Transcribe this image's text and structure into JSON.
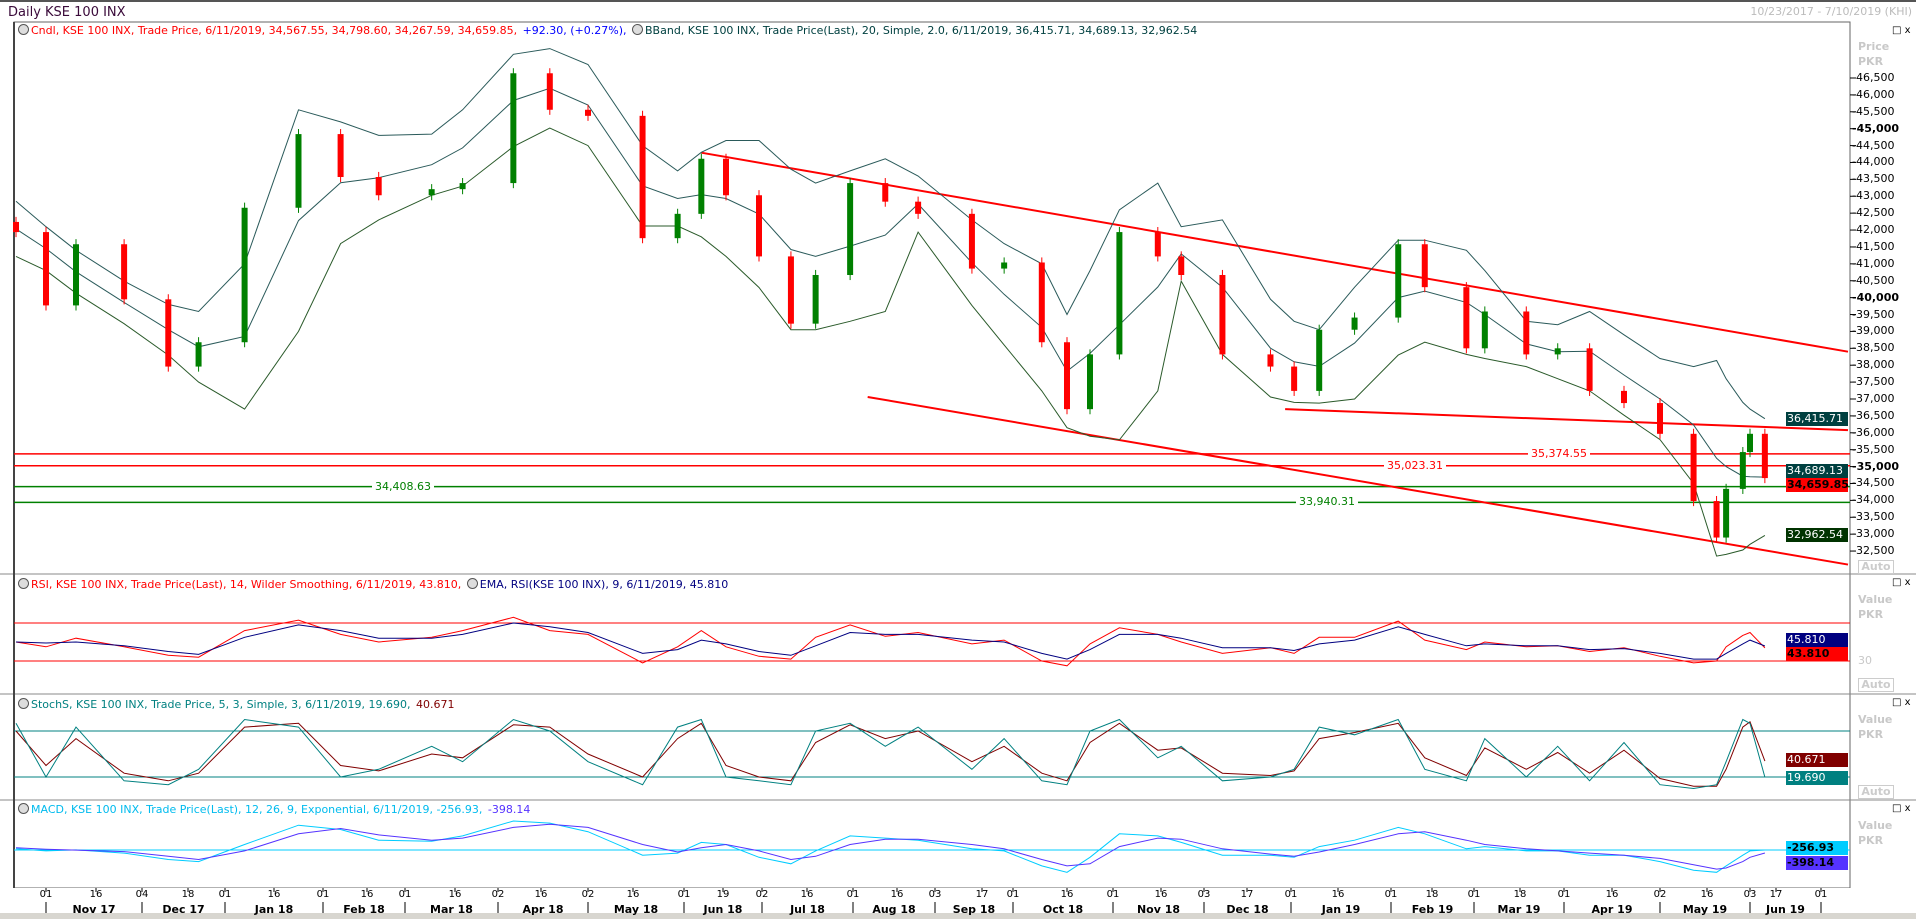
{
  "window": {
    "title": "Daily KSE 100 INX",
    "date_range": "10/23/2017 - 7/10/2019 (KHI)"
  },
  "legends": {
    "candle": "Cndl, KSE 100 INX, Trade Price, 6/11/2019, 34,567.55, 34,798.60, 34,267.59, 34,659.85,",
    "candle_change": "+92.30, (+0.27%),",
    "bband": "BBand, KSE 100 INX, Trade Price(Last), 20, Simple, 2.0, 6/11/2019, 36,415.71, 34,689.13, 32,962.54",
    "rsi": "RSI, KSE 100 INX, Trade Price(Last), 14, Wilder Smoothing, 6/11/2019, 43.810,",
    "rsi_ema": "EMA, RSI(KSE 100 INX), 9, 6/11/2019, 45.810",
    "stoch": "StochS, KSE 100 INX, Trade Price, 5, 3, Simple, 3, 6/11/2019, 19.690,",
    "stoch_d": "40.671",
    "macd": "MACD, KSE 100 INX, Trade Price(Last), 12, 26, 9, Exponential, 6/11/2019, -256.93,",
    "macd_signal": "-398.14"
  },
  "axis_panel": {
    "price_title": "Price",
    "unit": "PKR",
    "value_title": "Value",
    "auto": "Auto",
    "rsi_level_label": "30",
    "maximize": "□",
    "close": "x"
  },
  "colors": {
    "up": "#008000",
    "down": "#ff0000",
    "band": "#004040",
    "rsi": "#ff0000",
    "rsi_ema": "#000080",
    "stoch_k": "#008080",
    "stoch_d": "#800000",
    "macd": "#00ccff",
    "macd_signal": "#5533ff",
    "trend": "#ff0000",
    "support": "#008000"
  },
  "chart_data": [
    {
      "type": "candlestick",
      "name": "KSE 100 INX",
      "ylim": [
        32300,
        47000
      ],
      "yticks": [
        46500,
        46000,
        45500,
        45000,
        44500,
        44000,
        43500,
        43000,
        42500,
        42000,
        41500,
        41000,
        40500,
        40000,
        39500,
        39000,
        38500,
        38000,
        37500,
        37000,
        36500,
        36000,
        35500,
        35000,
        34500,
        34000,
        33500,
        33000,
        32500
      ],
      "ytick_labels": [
        "46,500",
        "46,000",
        "45,500",
        "45,000",
        "44,500",
        "44,000",
        "43,500",
        "43,000",
        "42,500",
        "42,000",
        "41,500",
        "41,000",
        "40,500",
        "40,000",
        "39,500",
        "39,000",
        "38,500",
        "38,000",
        "37,500",
        "37,000",
        "36,500",
        "36,000",
        "35,500",
        "35,000",
        "34,500",
        "34,000",
        "33,500",
        "33,000",
        "32,500"
      ],
      "dates": [
        "2017-10-23",
        "2017-11-01",
        "2017-11-10",
        "2017-11-27",
        "2017-12-12",
        "2017-12-22",
        "2018-01-07",
        "2018-01-24",
        "2018-02-07",
        "2018-02-20",
        "2018-03-09",
        "2018-03-19",
        "2018-04-07",
        "2018-04-19",
        "2018-05-02",
        "2018-05-19",
        "2018-05-30",
        "2018-06-09",
        "2018-06-20",
        "2018-07-01",
        "2018-07-11",
        "2018-07-19",
        "2018-07-31",
        "2018-08-12",
        "2018-08-26",
        "2018-09-14",
        "2018-09-27",
        "2018-10-09",
        "2018-10-16",
        "2018-10-24",
        "2018-11-03",
        "2018-11-15",
        "2018-11-24",
        "2018-12-09",
        "2018-12-25",
        "2019-01-02",
        "2019-01-10",
        "2019-01-21",
        "2019-02-04",
        "2019-02-15",
        "2019-02-27",
        "2019-03-05",
        "2019-03-20",
        "2019-03-30",
        "2019-04-09",
        "2019-04-20",
        "2019-05-02",
        "2019-05-12",
        "2019-05-20",
        "2019-05-24",
        "2019-05-31",
        "2019-06-03",
        "2019-06-11"
      ],
      "close": [
        41940,
        39770,
        41580,
        39950,
        37960,
        38680,
        42660,
        44840,
        43570,
        43030,
        43210,
        43390,
        46640,
        45560,
        45380,
        41760,
        42480,
        44110,
        43030,
        41220,
        39230,
        40670,
        43390,
        42840,
        42480,
        40860,
        41040,
        38680,
        36700,
        38320,
        41940,
        41220,
        40670,
        38320,
        37960,
        37240,
        39050,
        39410,
        41580,
        40310,
        38500,
        39590,
        38320,
        38500,
        37240,
        36880,
        35970,
        33980,
        32900,
        34340,
        35430,
        35970,
        34659.85
      ],
      "last_ohlc": {
        "open": 34567.55,
        "high": 34798.6,
        "low": 34267.59,
        "close": 34659.85,
        "change": 92.3,
        "change_pct": 0.27
      },
      "bband_upper": [
        42850,
        42100,
        41400,
        40490,
        39800,
        39590,
        41000,
        45560,
        45200,
        44800,
        44840,
        45560,
        47200,
        47370,
        46900,
        44500,
        43750,
        44300,
        44650,
        44650,
        43800,
        43390,
        43750,
        44110,
        43600,
        42300,
        41600,
        41000,
        39500,
        40800,
        42600,
        43390,
        42100,
        42300,
        39950,
        39300,
        39050,
        40310,
        41700,
        41700,
        41400,
        40800,
        39300,
        39200,
        39590,
        38900,
        38200,
        37960,
        38140,
        37600,
        36900,
        36700,
        36415.71
      ],
      "bband_lower": [
        41220,
        40800,
        40130,
        39230,
        38300,
        37500,
        36700,
        39000,
        41600,
        42300,
        43030,
        43300,
        44470,
        45020,
        44500,
        42120,
        42120,
        41800,
        41220,
        40300,
        39050,
        39050,
        39300,
        39590,
        41940,
        39770,
        38600,
        37240,
        36150,
        35900,
        35790,
        37240,
        40490,
        38320,
        37060,
        36900,
        36880,
        37000,
        38300,
        38680,
        38320,
        38200,
        37960,
        37600,
        37240,
        36520,
        35800,
        34500,
        32350,
        32400,
        32530,
        32700,
        32962.54
      ],
      "bband_last": {
        "upper": 36415.71,
        "middle": 34689.13,
        "lower": 32962.54
      },
      "horizontal_lines": [
        {
          "value": 35374.55,
          "label": "35,374.55",
          "color": "#ff0000"
        },
        {
          "value": 35023.31,
          "label": "35,023.31",
          "color": "#ff0000"
        },
        {
          "value": 34408.63,
          "label": "34,408.63",
          "color": "#008000"
        },
        {
          "value": 33940.31,
          "label": "33,940.31",
          "color": "#008000"
        }
      ],
      "trend_lines": [
        {
          "from": [
            "2018-06-09",
            44290
          ],
          "to": [
            "2019-07-10",
            38400
          ]
        },
        {
          "from": [
            "2018-08-06",
            37060
          ],
          "to": [
            "2019-07-10",
            32100
          ]
        },
        {
          "from": [
            "2018-12-30",
            36700
          ],
          "to": [
            "2019-07-10",
            36080
          ]
        }
      ],
      "value_tags": [
        {
          "value": 36415.71,
          "label": "36,415.71",
          "bg": "#004040",
          "fg": "#ffffff"
        },
        {
          "value": 34689.13,
          "label": "34,689.13",
          "bg": "#004040",
          "fg": "#ffffff"
        },
        {
          "value": 34659.85,
          "label": "34,659.85",
          "bg": "#ff0000",
          "fg": "#000000"
        },
        {
          "value": 32962.54,
          "label": "32,962.54",
          "bg": "#003300",
          "fg": "#ffffff"
        }
      ]
    },
    {
      "type": "line",
      "name": "RSI",
      "levels": [
        70,
        30
      ],
      "rsi": [
        50,
        45,
        54,
        45,
        36,
        34,
        62,
        73,
        58,
        50,
        55,
        62,
        76,
        62,
        58,
        28,
        45,
        62,
        45,
        35,
        32,
        55,
        68,
        56,
        60,
        48,
        52,
        30,
        25,
        48,
        65,
        58,
        50,
        38,
        44,
        38,
        55,
        55,
        72,
        52,
        42,
        50,
        45,
        46,
        40,
        44,
        35,
        28,
        30,
        45,
        57,
        60,
        43.81
      ],
      "ema": [
        50,
        49,
        50,
        46,
        40,
        37,
        55,
        68,
        62,
        54,
        54,
        58,
        70,
        66,
        60,
        38,
        42,
        52,
        48,
        40,
        36,
        46,
        60,
        58,
        58,
        52,
        50,
        38,
        32,
        42,
        58,
        58,
        54,
        44,
        44,
        41,
        48,
        52,
        66,
        58,
        46,
        48,
        46,
        46,
        42,
        43,
        38,
        32,
        32,
        38,
        48,
        52,
        45.81
      ],
      "value_tags": [
        {
          "value": 45.81,
          "label": "45.810",
          "bg": "#000080",
          "fg": "#ffffff"
        },
        {
          "value": 43.81,
          "label": "43.810",
          "bg": "#ff0000",
          "fg": "#000000"
        }
      ]
    },
    {
      "type": "line",
      "name": "StochS",
      "levels": [
        80,
        20
      ],
      "k": [
        90,
        20,
        85,
        15,
        10,
        30,
        95,
        85,
        20,
        30,
        60,
        40,
        95,
        80,
        40,
        10,
        85,
        95,
        20,
        15,
        10,
        80,
        90,
        60,
        85,
        30,
        70,
        15,
        10,
        80,
        95,
        45,
        60,
        15,
        20,
        30,
        85,
        75,
        95,
        30,
        15,
        70,
        20,
        60,
        15,
        65,
        10,
        5,
        10,
        40,
        95,
        90,
        19.69
      ],
      "d": [
        80,
        35,
        70,
        25,
        15,
        25,
        85,
        90,
        35,
        28,
        50,
        45,
        88,
        85,
        50,
        20,
        70,
        90,
        35,
        20,
        15,
        65,
        88,
        70,
        80,
        40,
        60,
        25,
        15,
        65,
        90,
        55,
        58,
        25,
        22,
        28,
        70,
        78,
        90,
        45,
        22,
        58,
        30,
        52,
        25,
        55,
        18,
        8,
        8,
        30,
        85,
        92,
        40.671
      ],
      "value_tags": [
        {
          "value": 40.671,
          "label": "40.671",
          "bg": "#800000",
          "fg": "#ffffff"
        },
        {
          "value": 19.69,
          "label": "19.690",
          "bg": "#008080",
          "fg": "#ffffff"
        }
      ]
    },
    {
      "type": "line",
      "name": "MACD",
      "macd": [
        -200,
        -300,
        -250,
        -400,
        -700,
        -800,
        0,
        900,
        700,
        200,
        150,
        400,
        1100,
        1000,
        600,
        -500,
        -400,
        100,
        0,
        -600,
        -900,
        -300,
        400,
        300,
        200,
        -200,
        -300,
        -1000,
        -1300,
        -600,
        500,
        400,
        100,
        -500,
        -500,
        -600,
        -100,
        200,
        800,
        500,
        -200,
        -100,
        -300,
        -300,
        -500,
        -500,
        -800,
        -1200,
        -1300,
        -1000,
        -500,
        -300,
        -256.93
      ],
      "signal": [
        -150,
        -220,
        -260,
        -330,
        -550,
        -700,
        -300,
        500,
        750,
        450,
        200,
        300,
        800,
        950,
        800,
        0,
        -350,
        -150,
        0,
        -300,
        -700,
        -550,
        0,
        250,
        250,
        0,
        -200,
        -700,
        -1000,
        -900,
        -100,
        300,
        250,
        -200,
        -450,
        -550,
        -350,
        0,
        500,
        600,
        200,
        0,
        -200,
        -300,
        -400,
        -500,
        -650,
        -950,
        -1150,
        -1100,
        -800,
        -600,
        -398.14
      ],
      "value_tags": [
        {
          "value": -256.93,
          "label": "-256.93",
          "bg": "#00ccff",
          "fg": "#000000"
        },
        {
          "value": -398.14,
          "label": "-398.14",
          "bg": "#5533ff",
          "fg": "#000000"
        }
      ]
    }
  ],
  "x_axis": {
    "ticks": [
      {
        "label": "01",
        "date": "2017-11-01"
      },
      {
        "label": "16",
        "date": "2017-11-16"
      },
      {
        "label": "04",
        "date": "2017-12-04"
      },
      {
        "label": "18",
        "date": "2017-12-18"
      },
      {
        "label": "01",
        "date": "2018-01-01"
      },
      {
        "label": "16",
        "date": "2018-01-16"
      },
      {
        "label": "01",
        "date": "2018-02-01"
      },
      {
        "label": "16",
        "date": "2018-02-16"
      },
      {
        "label": "01",
        "date": "2018-03-01"
      },
      {
        "label": "16",
        "date": "2018-03-16"
      },
      {
        "label": "02",
        "date": "2018-04-02"
      },
      {
        "label": "16",
        "date": "2018-04-16"
      },
      {
        "label": "02",
        "date": "2018-05-02"
      },
      {
        "label": "16",
        "date": "2018-05-16"
      },
      {
        "label": "01",
        "date": "2018-06-01"
      },
      {
        "label": "19",
        "date": "2018-06-19"
      },
      {
        "label": "02",
        "date": "2018-07-02"
      },
      {
        "label": "16",
        "date": "2018-07-16"
      },
      {
        "label": "01",
        "date": "2018-08-01"
      },
      {
        "label": "16",
        "date": "2018-08-16"
      },
      {
        "label": "03",
        "date": "2018-09-03"
      },
      {
        "label": "17",
        "date": "2018-09-17"
      },
      {
        "label": "01",
        "date": "2018-10-01"
      },
      {
        "label": "16",
        "date": "2018-10-16"
      },
      {
        "label": "01",
        "date": "2018-11-01"
      },
      {
        "label": "16",
        "date": "2018-11-16"
      },
      {
        "label": "03",
        "date": "2018-12-03"
      },
      {
        "label": "17",
        "date": "2018-12-17"
      },
      {
        "label": "01",
        "date": "2019-01-01"
      },
      {
        "label": "16",
        "date": "2019-01-16"
      },
      {
        "label": "01",
        "date": "2019-02-01"
      },
      {
        "label": "18",
        "date": "2019-02-18"
      },
      {
        "label": "01",
        "date": "2019-03-01"
      },
      {
        "label": "18",
        "date": "2019-03-18"
      },
      {
        "label": "01",
        "date": "2019-04-01"
      },
      {
        "label": "16",
        "date": "2019-04-16"
      },
      {
        "label": "02",
        "date": "2019-05-02"
      },
      {
        "label": "16",
        "date": "2019-05-16"
      },
      {
        "label": "03",
        "date": "2019-06-03"
      },
      {
        "label": "17",
        "date": "2019-06-17"
      },
      {
        "label": "01",
        "date": "2019-07-01"
      }
    ],
    "months": [
      "Nov 17",
      "Dec 17",
      "Jan 18",
      "Feb 18",
      "Mar 18",
      "Apr 18",
      "May 18",
      "Jun 18",
      "Jul 18",
      "Aug 18",
      "Sep 18",
      "Oct 18",
      "Nov 18",
      "Dec 18",
      "Jan 19",
      "Feb 19",
      "Mar 19",
      "Apr 19",
      "May 19",
      "Jun 19"
    ]
  }
}
